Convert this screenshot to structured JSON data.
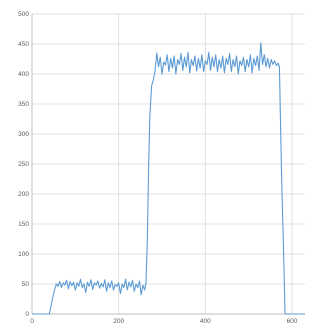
{
  "chart_data": {
    "type": "line",
    "title": "",
    "xlabel": "",
    "ylabel": "",
    "xlim": [
      0,
      630
    ],
    "ylim": [
      0,
      500
    ],
    "x_ticks": [
      0,
      200,
      400,
      600
    ],
    "y_ticks": [
      0,
      50,
      100,
      150,
      200,
      250,
      300,
      350,
      400,
      450,
      500
    ],
    "x_tick_labels": [
      "0",
      "200",
      "400",
      "600"
    ],
    "y_tick_labels": [
      "0",
      "50",
      "100",
      "150",
      "200",
      "250",
      "300",
      "350",
      "400",
      "450",
      "500"
    ],
    "grid": true,
    "legend": "none",
    "colors": {
      "series": "#5b9bd5",
      "grid": "#d9d9d9",
      "axis": "#bfbfbf",
      "label": "#595959"
    },
    "series": [
      {
        "values": [
          [
            0,
            0
          ],
          [
            40,
            0
          ],
          [
            44,
            14
          ],
          [
            48,
            28
          ],
          [
            52,
            40
          ],
          [
            56,
            50
          ],
          [
            60,
            46
          ],
          [
            64,
            54
          ],
          [
            68,
            44
          ],
          [
            72,
            52
          ],
          [
            76,
            48
          ],
          [
            80,
            56
          ],
          [
            84,
            42
          ],
          [
            88,
            54
          ],
          [
            92,
            47
          ],
          [
            96,
            53
          ],
          [
            100,
            40
          ],
          [
            104,
            52
          ],
          [
            108,
            46
          ],
          [
            112,
            58
          ],
          [
            116,
            44
          ],
          [
            120,
            50
          ],
          [
            124,
            36
          ],
          [
            128,
            53
          ],
          [
            132,
            46
          ],
          [
            136,
            57
          ],
          [
            140,
            41
          ],
          [
            144,
            52
          ],
          [
            148,
            48
          ],
          [
            152,
            55
          ],
          [
            156,
            43
          ],
          [
            160,
            51
          ],
          [
            164,
            45
          ],
          [
            168,
            57
          ],
          [
            172,
            38
          ],
          [
            176,
            52
          ],
          [
            180,
            44
          ],
          [
            184,
            55
          ],
          [
            188,
            40
          ],
          [
            192,
            49
          ],
          [
            196,
            46
          ],
          [
            200,
            52
          ],
          [
            204,
            34
          ],
          [
            208,
            50
          ],
          [
            212,
            44
          ],
          [
            216,
            58
          ],
          [
            220,
            40
          ],
          [
            224,
            53
          ],
          [
            228,
            45
          ],
          [
            232,
            56
          ],
          [
            236,
            38
          ],
          [
            240,
            50
          ],
          [
            244,
            44
          ],
          [
            248,
            55
          ],
          [
            252,
            32
          ],
          [
            256,
            48
          ],
          [
            260,
            40
          ],
          [
            263,
            52
          ],
          [
            266,
            120
          ],
          [
            269,
            240
          ],
          [
            272,
            330
          ],
          [
            276,
            380
          ],
          [
            280,
            390
          ],
          [
            284,
            405
          ],
          [
            288,
            435
          ],
          [
            292,
            412
          ],
          [
            296,
            428
          ],
          [
            300,
            400
          ],
          [
            304,
            420
          ],
          [
            308,
            415
          ],
          [
            312,
            432
          ],
          [
            316,
            404
          ],
          [
            320,
            426
          ],
          [
            324,
            410
          ],
          [
            328,
            430
          ],
          [
            332,
            400
          ],
          [
            336,
            424
          ],
          [
            340,
            416
          ],
          [
            344,
            434
          ],
          [
            348,
            406
          ],
          [
            352,
            428
          ],
          [
            356,
            412
          ],
          [
            360,
            436
          ],
          [
            364,
            402
          ],
          [
            368,
            424
          ],
          [
            372,
            414
          ],
          [
            376,
            430
          ],
          [
            380,
            405
          ],
          [
            384,
            426
          ],
          [
            388,
            410
          ],
          [
            392,
            432
          ],
          [
            396,
            404
          ],
          [
            400,
            422
          ],
          [
            404,
            416
          ],
          [
            408,
            436
          ],
          [
            412,
            406
          ],
          [
            416,
            428
          ],
          [
            420,
            412
          ],
          [
            424,
            432
          ],
          [
            428,
            404
          ],
          [
            432,
            424
          ],
          [
            436,
            410
          ],
          [
            440,
            430
          ],
          [
            444,
            402
          ],
          [
            448,
            426
          ],
          [
            452,
            416
          ],
          [
            456,
            434
          ],
          [
            460,
            404
          ],
          [
            464,
            424
          ],
          [
            468,
            412
          ],
          [
            472,
            430
          ],
          [
            476,
            400
          ],
          [
            480,
            422
          ],
          [
            484,
            414
          ],
          [
            488,
            428
          ],
          [
            492,
            404
          ],
          [
            496,
            424
          ],
          [
            500,
            412
          ],
          [
            504,
            432
          ],
          [
            508,
            402
          ],
          [
            512,
            426
          ],
          [
            516,
            414
          ],
          [
            520,
            430
          ],
          [
            524,
            406
          ],
          [
            528,
            452
          ],
          [
            532,
            416
          ],
          [
            536,
            432
          ],
          [
            540,
            412
          ],
          [
            544,
            426
          ],
          [
            548,
            410
          ],
          [
            552,
            424
          ],
          [
            556,
            416
          ],
          [
            560,
            422
          ],
          [
            564,
            414
          ],
          [
            568,
            418
          ],
          [
            571,
            412
          ],
          [
            574,
            300
          ],
          [
            577,
            200
          ],
          [
            580,
            120
          ],
          [
            582,
            60
          ],
          [
            584,
            0
          ],
          [
            630,
            0
          ]
        ]
      }
    ]
  }
}
